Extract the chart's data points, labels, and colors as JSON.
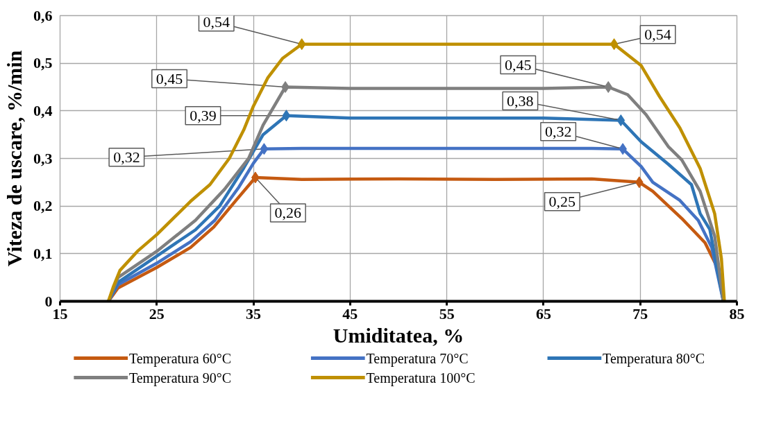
{
  "chart_data": {
    "type": "line",
    "xlabel": "Umiditatea, %",
    "ylabel": "Viteza de uscare, %/min",
    "xlim": [
      15,
      85
    ],
    "xticks": [
      15,
      25,
      35,
      45,
      55,
      65,
      75,
      85
    ],
    "ylim": [
      0,
      0.6
    ],
    "yticks": [
      0,
      {
        "value": 0.1,
        "label": "0,1"
      },
      {
        "value": 0.2,
        "label": "0,2"
      },
      {
        "value": 0.3,
        "label": "0,3"
      },
      {
        "value": 0.4,
        "label": "0,4"
      },
      {
        "value": 0.5,
        "label": "0,5"
      },
      {
        "value": 0.6,
        "label": "0,6"
      }
    ],
    "grid": true,
    "legend": "bottom",
    "line_style": "solid",
    "series": [
      {
        "name": "Temperatura 60°C",
        "color": "#c55a11",
        "x": [
          20,
          21,
          25,
          28.5,
          30.9,
          33.2,
          35.2,
          40,
          50,
          60,
          70,
          74.9,
          76.3,
          79.3,
          81.7,
          83.1,
          83.6
        ],
        "values": [
          0,
          0.028,
          0.071,
          0.113,
          0.156,
          0.212,
          0.26,
          0.256,
          0.257,
          0.256,
          0.257,
          0.25,
          0.231,
          0.174,
          0.123,
          0.066,
          0
        ],
        "value_labels": [
          null,
          null,
          null,
          null,
          null,
          null,
          "0,26",
          null,
          null,
          null,
          null,
          "0,25",
          null,
          null,
          null,
          null,
          null
        ]
      },
      {
        "name": "Temperatura 70°C",
        "color": "#4472c4",
        "x": [
          20,
          21,
          25,
          28.5,
          31,
          33.5,
          35,
          36.1,
          40,
          50,
          60,
          70,
          73.2,
          75.1,
          76.3,
          79.1,
          81,
          82.4,
          83.6
        ],
        "values": [
          0,
          0.035,
          0.08,
          0.125,
          0.17,
          0.24,
          0.29,
          0.32,
          0.321,
          0.321,
          0.321,
          0.321,
          0.32,
          0.283,
          0.25,
          0.212,
          0.17,
          0.113,
          0
        ],
        "value_labels": [
          null,
          null,
          null,
          null,
          null,
          null,
          null,
          "0,32",
          null,
          null,
          null,
          null,
          "0,32",
          null,
          null,
          null,
          null,
          null,
          null
        ]
      },
      {
        "name": "Temperatura 80°C",
        "color": "#2e75b6",
        "x": [
          20,
          21,
          25,
          29,
          31.5,
          34,
          36,
          38.4,
          45,
          55,
          65,
          73,
          75.1,
          77.9,
          80.3,
          81.2,
          82.2,
          83.6
        ],
        "values": [
          0,
          0.04,
          0.095,
          0.15,
          0.2,
          0.28,
          0.35,
          0.39,
          0.385,
          0.385,
          0.385,
          0.38,
          0.335,
          0.288,
          0.245,
          0.184,
          0.151,
          0
        ],
        "value_labels": [
          null,
          null,
          null,
          null,
          null,
          null,
          null,
          "0,39",
          null,
          null,
          null,
          "0,38",
          null,
          null,
          null,
          null,
          null,
          null
        ]
      },
      {
        "name": "Temperatura 90°C",
        "color": "#7f7f7f",
        "x": [
          20,
          21,
          25,
          29,
          32,
          34.5,
          36,
          38.3,
          45,
          55,
          65,
          71.7,
          73.7,
          75.6,
          77.9,
          79.3,
          81.2,
          82.7,
          83.6
        ],
        "values": [
          0,
          0.05,
          0.105,
          0.17,
          0.235,
          0.3,
          0.37,
          0.45,
          0.447,
          0.447,
          0.447,
          0.45,
          0.434,
          0.392,
          0.325,
          0.297,
          0.231,
          0.137,
          0
        ],
        "value_labels": [
          null,
          null,
          null,
          null,
          null,
          null,
          null,
          "0,45",
          null,
          null,
          null,
          "0,45",
          null,
          null,
          null,
          null,
          null,
          null,
          null
        ]
      },
      {
        "name": "Temperatura 100°C",
        "color": "#bf9000",
        "x": [
          20,
          20.5,
          21.2,
          23,
          25,
          27,
          28.5,
          30.5,
          32.5,
          34,
          35,
          36.5,
          38,
          40,
          50,
          60,
          72.3,
          75.1,
          77,
          79.1,
          81.2,
          82.7,
          83.4,
          83.7
        ],
        "values": [
          0,
          0.03,
          0.065,
          0.105,
          0.14,
          0.18,
          0.21,
          0.245,
          0.3,
          0.36,
          0.41,
          0.47,
          0.51,
          0.54,
          0.54,
          0.54,
          0.54,
          0.495,
          0.43,
          0.364,
          0.279,
          0.184,
          0.089,
          0
        ],
        "value_labels": [
          null,
          null,
          null,
          null,
          null,
          null,
          null,
          null,
          null,
          null,
          null,
          null,
          null,
          "0,54",
          null,
          null,
          "0,54",
          null,
          null,
          null,
          null,
          null,
          null,
          null
        ]
      }
    ]
  }
}
